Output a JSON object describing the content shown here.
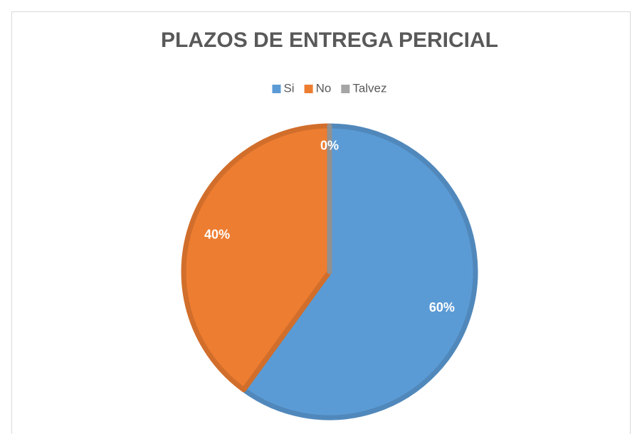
{
  "chart_data": {
    "type": "pie",
    "title": "PLAZOS DE ENTREGA PERICIAL",
    "categories": [
      "Si",
      "No",
      "Talvez"
    ],
    "values": [
      60,
      40,
      0
    ],
    "value_labels": [
      "60%",
      "40%",
      "0%"
    ],
    "colors": [
      "#5b9bd5",
      "#ed7d31",
      "#a5a5a5"
    ],
    "legend": "top"
  }
}
